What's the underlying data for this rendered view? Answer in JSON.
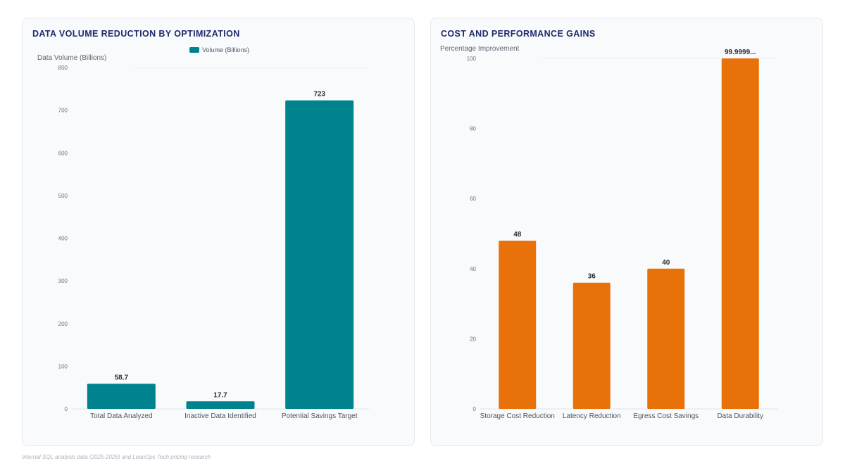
{
  "charts": [
    {
      "title": "DATA VOLUME REDUCTION BY OPTIMIZATION",
      "ylabel": "Data Volume (Billions)",
      "legend_label": "Volume (Billions)",
      "ticks": [
        "800",
        "700",
        "600",
        "500",
        "400",
        "300",
        "200",
        "100",
        "0"
      ],
      "categories": [
        "Total Data Analyzed",
        "Inactive Data Identified",
        "Potential Savings Target"
      ],
      "labels": [
        "58.7",
        "17.7",
        "723"
      ]
    },
    {
      "title": "COST AND PERFORMANCE GAINS",
      "ylabel": "Percentage Improvement",
      "ticks": [
        "100",
        "80",
        "60",
        "40",
        "20",
        "0"
      ],
      "categories": [
        "Storage Cost Reduction",
        "Latency Reduction",
        "Egress Cost Savings",
        "Data Durability"
      ],
      "labels": [
        "48",
        "36",
        "40",
        "99.9999..."
      ]
    }
  ],
  "footer": "Internal SQL analysis data (2025-2026) and LeanOps Tech pricing research",
  "chart_data": [
    {
      "type": "bar",
      "title": "DATA VOLUME REDUCTION BY OPTIMIZATION",
      "xlabel": "",
      "ylabel": "Data Volume (Billions)",
      "categories": [
        "Total Data Analyzed",
        "Inactive Data Identified",
        "Potential Savings Target"
      ],
      "series": [
        {
          "name": "Volume (Billions)",
          "values": [
            58.7,
            17.7,
            723
          ],
          "color": "#00838f"
        }
      ],
      "ylim": [
        0,
        800
      ],
      "grid": false,
      "legend": "top"
    },
    {
      "type": "bar",
      "title": "COST AND PERFORMANCE GAINS",
      "xlabel": "",
      "ylabel": "Percentage Improvement",
      "categories": [
        "Storage Cost Reduction",
        "Latency Reduction",
        "Egress Cost Savings",
        "Data Durability"
      ],
      "series": [
        {
          "values": [
            48,
            36,
            40,
            99.9999
          ],
          "color": "#e8710a"
        }
      ],
      "ylim": [
        0,
        100
      ],
      "grid": false,
      "legend": "none"
    }
  ]
}
